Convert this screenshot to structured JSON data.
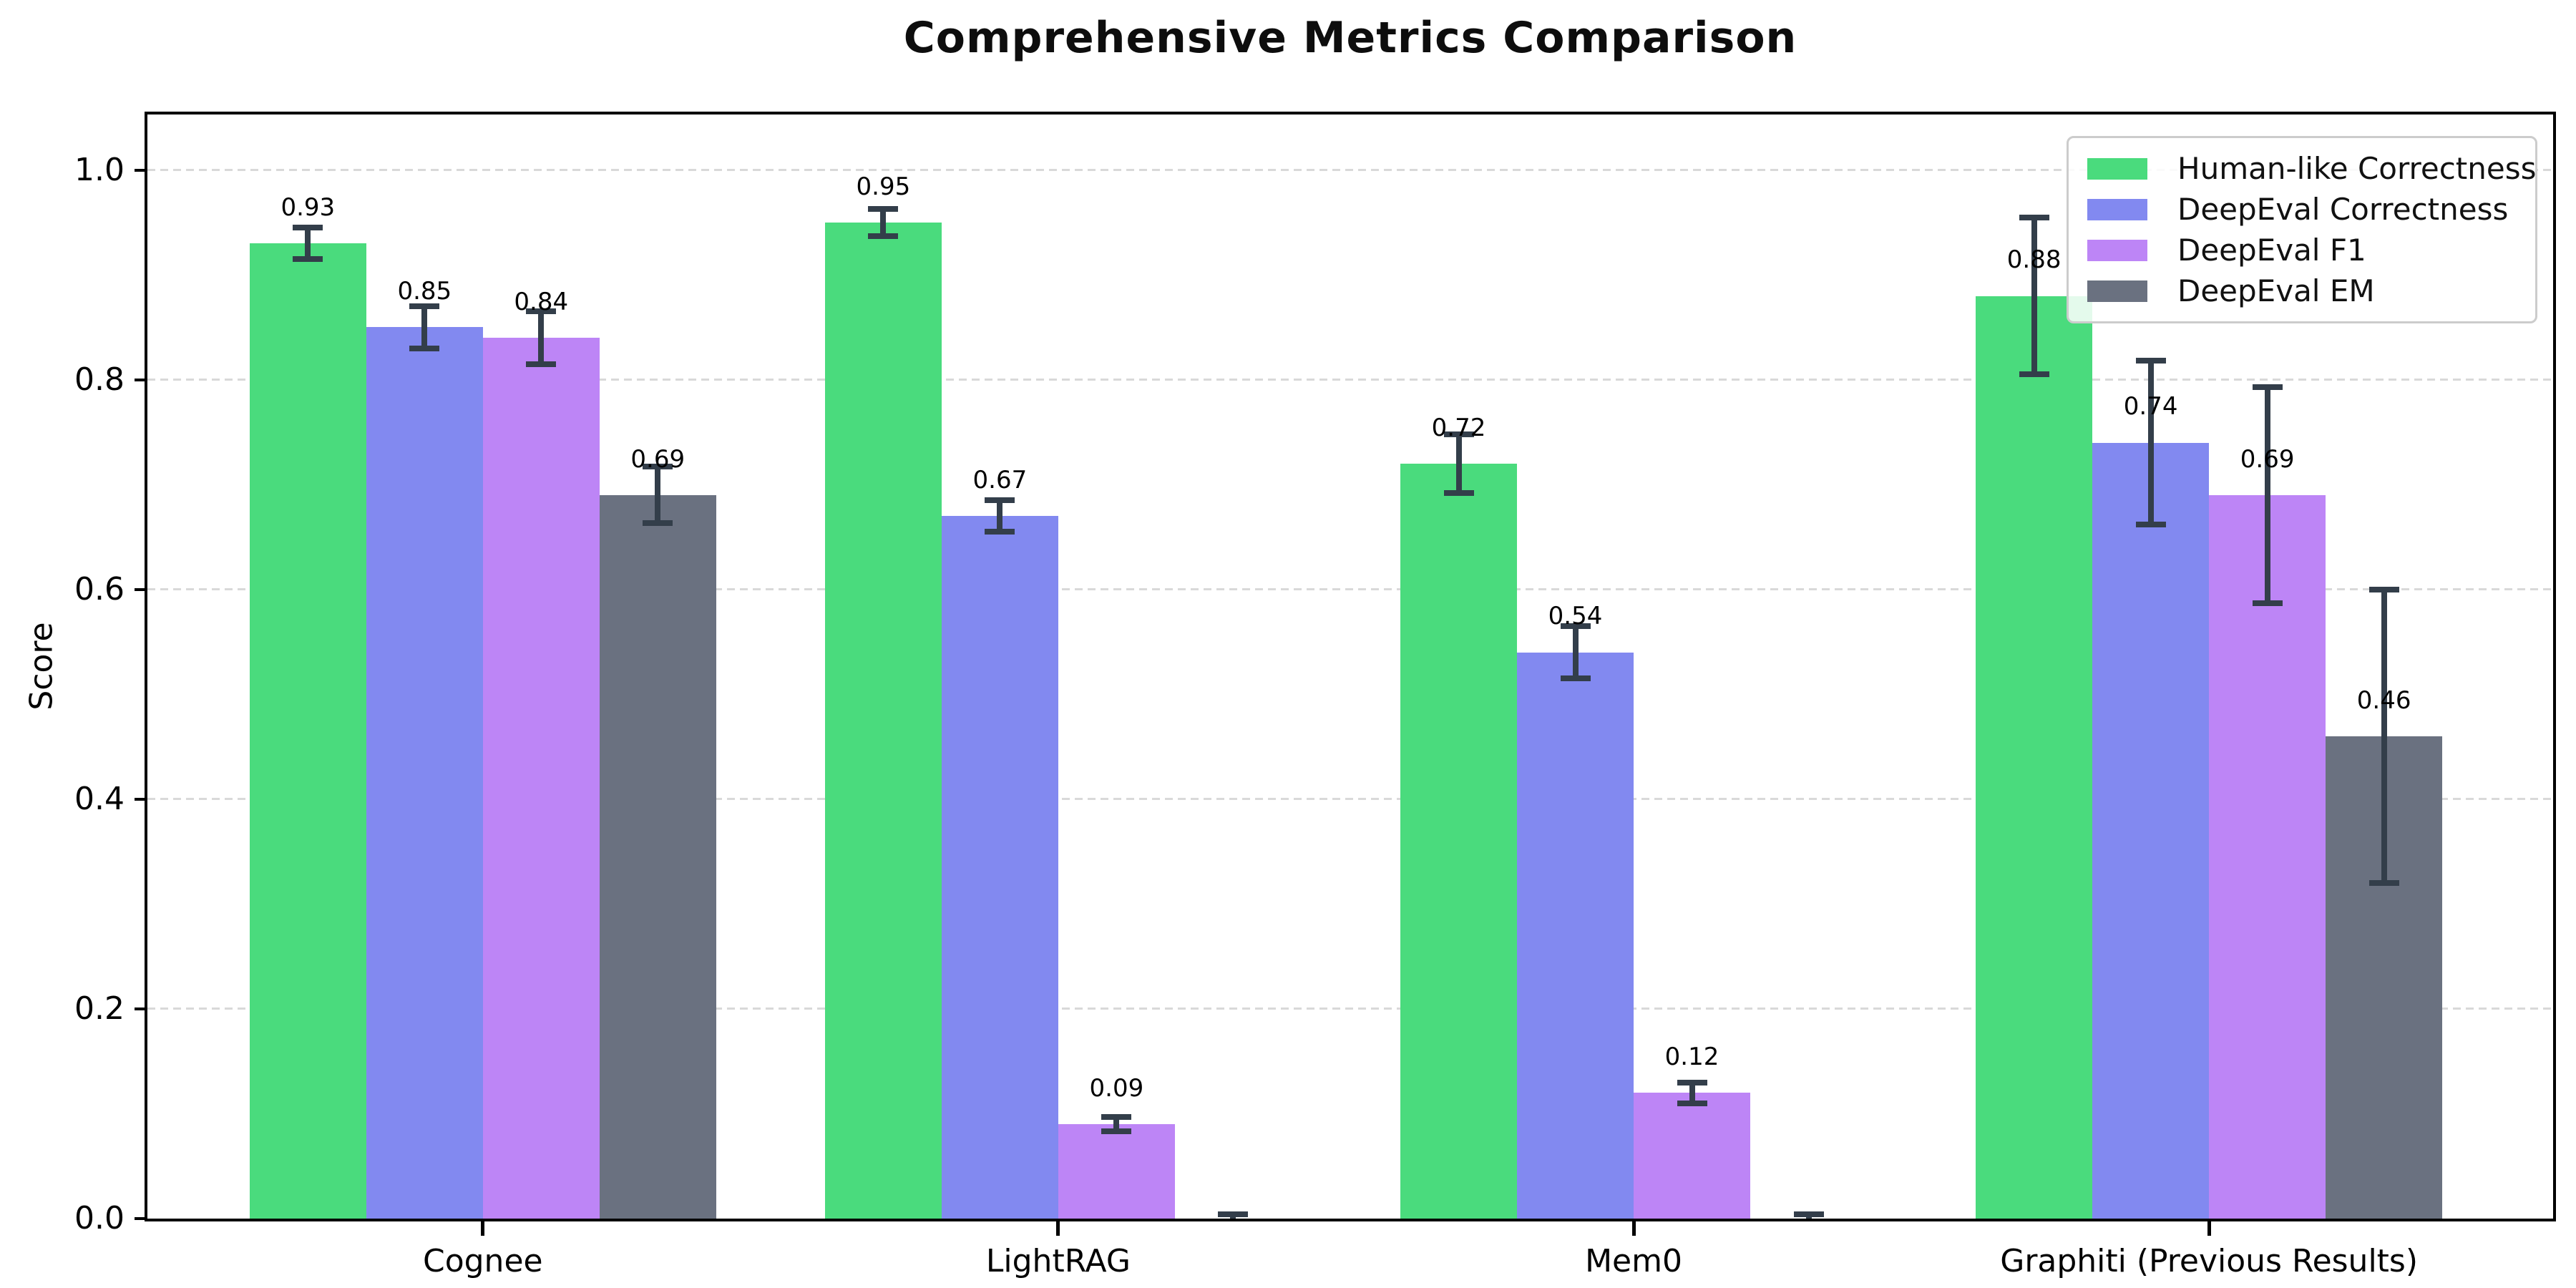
{
  "chart_data": {
    "type": "bar",
    "title": "Comprehensive Metrics Comparison",
    "xlabel": "",
    "ylabel": "Score",
    "categories": [
      "Cognee",
      "LightRAG",
      "Mem0",
      "Graphiti (Previous Results)"
    ],
    "series": [
      {
        "name": "Human-like Correctness",
        "color": "#4adb7d",
        "values": [
          0.93,
          0.95,
          0.72,
          0.88
        ],
        "errors": [
          0.015,
          0.013,
          0.028,
          0.075
        ],
        "labels": [
          "0.93",
          "0.95",
          "0.72",
          "0.88"
        ]
      },
      {
        "name": "DeepEval Correctness",
        "color": "#8289f0",
        "values": [
          0.85,
          0.67,
          0.54,
          0.74
        ],
        "errors": [
          0.02,
          0.015,
          0.025,
          0.078
        ],
        "labels": [
          "0.85",
          "0.67",
          "0.54",
          "0.74"
        ]
      },
      {
        "name": "DeepEval F1",
        "color": "#bd85f6",
        "values": [
          0.84,
          0.09,
          0.12,
          0.69
        ],
        "errors": [
          0.025,
          0.007,
          0.01,
          0.103
        ],
        "labels": [
          "0.84",
          "0.09",
          "0.12",
          "0.69"
        ]
      },
      {
        "name": "DeepEval EM",
        "color": "#6a7180",
        "values": [
          0.69,
          0.0,
          0.0,
          0.46
        ],
        "errors": [
          0.027,
          0.004,
          0.004,
          0.14
        ],
        "labels": [
          "0.69",
          null,
          null,
          "0.46"
        ]
      }
    ],
    "yticks": [
      0.0,
      0.2,
      0.4,
      0.6,
      0.8,
      1.0
    ],
    "ytick_labels": [
      "0.0",
      "0.2",
      "0.4",
      "0.6",
      "0.8",
      "1.0"
    ],
    "ylim": [
      0,
      1.053
    ],
    "grid": "horizontal-dashed",
    "grid_color": "#d9d9d9",
    "error_bar_color": "#333e4a",
    "legend_position": "upper right",
    "axis_color": "#000000",
    "background_color": "#ffffff"
  }
}
